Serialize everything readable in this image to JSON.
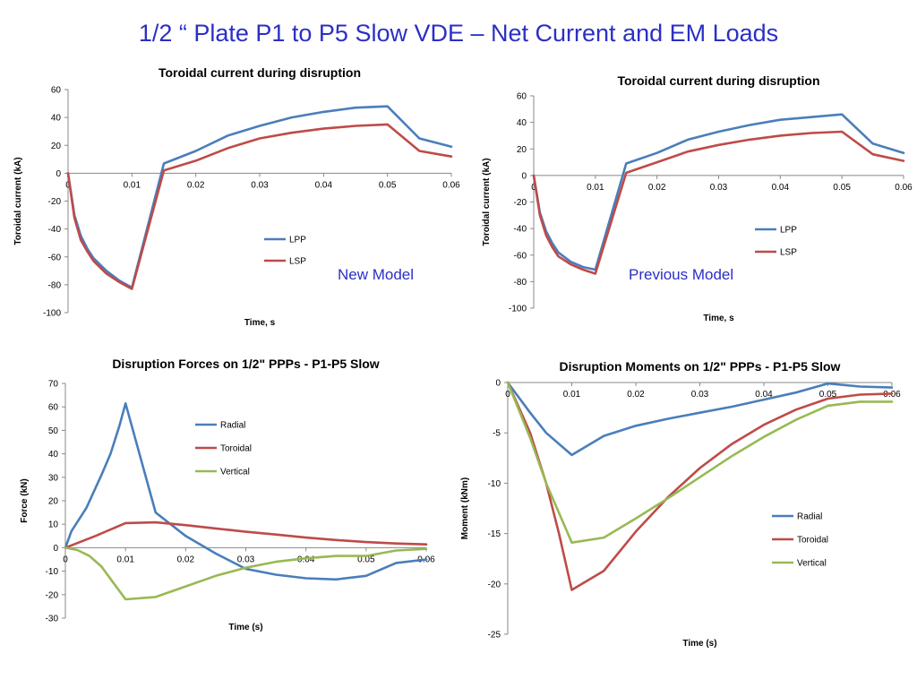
{
  "page": {
    "title": "1/2 “ Plate P1 to P5 Slow VDE – Net Current and EM Loads"
  },
  "notes": {
    "new_model": "New Model",
    "previous_model": "Previous Model"
  },
  "colors": {
    "blue": "#4a7ebb",
    "red": "#be4b48",
    "green": "#98b954",
    "title_blue": "#2b2fc4"
  },
  "chart_data": [
    {
      "id": "c1",
      "type": "line",
      "title": "Toroidal current during disruption",
      "xlabel": "Time, s",
      "ylabel": "Toroidal current (kA)",
      "xlim": [
        0,
        0.06
      ],
      "ylim": [
        -100,
        60
      ],
      "xticks": [
        0,
        0.01,
        0.02,
        0.03,
        0.04,
        0.05,
        0.06
      ],
      "xtick_labels": [
        "0",
        "0.01",
        "0.02",
        "0.03",
        "0.04",
        "0.05",
        "0.06"
      ],
      "yticks": [
        -100,
        -80,
        -60,
        -40,
        -20,
        0,
        20,
        40,
        60
      ],
      "ytick_labels": [
        "-100",
        "-80",
        "-60",
        "-40",
        "-20",
        "0",
        "20",
        "40",
        "60"
      ],
      "xtick_row": "zero",
      "grid": false,
      "legend": "center-right",
      "series": [
        {
          "name": "LPP",
          "color": "#4a7ebb",
          "x": [
            0,
            0.001,
            0.002,
            0.003,
            0.004,
            0.006,
            0.008,
            0.01,
            0.015,
            0.02,
            0.025,
            0.03,
            0.035,
            0.04,
            0.045,
            0.05,
            0.055,
            0.06
          ],
          "y": [
            0,
            -30,
            -45,
            -54,
            -61,
            -70,
            -77,
            -82,
            7,
            16,
            27,
            34,
            40,
            44,
            47,
            48,
            25,
            19
          ]
        },
        {
          "name": "LSP",
          "color": "#be4b48",
          "x": [
            0,
            0.001,
            0.002,
            0.003,
            0.004,
            0.006,
            0.008,
            0.01,
            0.015,
            0.02,
            0.025,
            0.03,
            0.035,
            0.04,
            0.045,
            0.05,
            0.055,
            0.06
          ],
          "y": [
            0,
            -32,
            -48,
            -56,
            -63,
            -72,
            -78,
            -83,
            2,
            9,
            18,
            25,
            29,
            32,
            34,
            35,
            16,
            12
          ]
        }
      ]
    },
    {
      "id": "c2",
      "type": "line",
      "title": "Toroidal current during disruption",
      "xlabel": "Time, s",
      "ylabel": "Toroidal current (kA)",
      "xlim": [
        0,
        0.06
      ],
      "ylim": [
        -100,
        60
      ],
      "xticks": [
        0,
        0.01,
        0.02,
        0.03,
        0.04,
        0.05,
        0.06
      ],
      "xtick_labels": [
        "0",
        "0.01",
        "0.02",
        "0.03",
        "0.04",
        "0.05",
        "0.06"
      ],
      "yticks": [
        -100,
        -80,
        -60,
        -40,
        -20,
        0,
        20,
        40,
        60
      ],
      "ytick_labels": [
        "-100",
        "-80",
        "-60",
        "-40",
        "-20",
        "0",
        "20",
        "40",
        "60"
      ],
      "xtick_row": "zero",
      "grid": false,
      "legend": "center-right",
      "series": [
        {
          "name": "LPP",
          "color": "#4a7ebb",
          "x": [
            0,
            0.001,
            0.002,
            0.003,
            0.004,
            0.006,
            0.008,
            0.01,
            0.015,
            0.02,
            0.025,
            0.03,
            0.035,
            0.04,
            0.045,
            0.05,
            0.055,
            0.06
          ],
          "y": [
            0,
            -28,
            -42,
            -51,
            -58,
            -65,
            -69,
            -71,
            9,
            17,
            27,
            33,
            38,
            42,
            44,
            46,
            24,
            17
          ]
        },
        {
          "name": "LSP",
          "color": "#be4b48",
          "x": [
            0,
            0.001,
            0.002,
            0.003,
            0.004,
            0.006,
            0.008,
            0.01,
            0.015,
            0.02,
            0.025,
            0.03,
            0.035,
            0.04,
            0.045,
            0.05,
            0.055,
            0.06
          ],
          "y": [
            0,
            -30,
            -45,
            -54,
            -61,
            -67,
            -71,
            -74,
            2,
            10,
            18,
            23,
            27,
            30,
            32,
            33,
            16,
            11
          ]
        }
      ]
    },
    {
      "id": "c3",
      "type": "line",
      "title": "Disruption Forces on 1/2\" PPPs - P1-P5 Slow",
      "xlabel": "Time (s)",
      "ylabel": "Force (kN)",
      "xlim": [
        0,
        0.06
      ],
      "ylim": [
        -30,
        70
      ],
      "xticks": [
        0,
        0.01,
        0.02,
        0.03,
        0.04,
        0.05,
        0.06
      ],
      "xtick_labels": [
        "0",
        "0.01",
        "0.02",
        "0.03",
        "0.04",
        "0.05",
        "0.06"
      ],
      "yticks": [
        -30,
        -20,
        -10,
        0,
        10,
        20,
        30,
        40,
        50,
        60,
        70
      ],
      "ytick_labels": [
        "-30",
        "-20",
        "-10",
        "0",
        "10",
        "20",
        "30",
        "40",
        "50",
        "60",
        "70"
      ],
      "xtick_row": "zero",
      "grid": false,
      "legend": "top-center",
      "series": [
        {
          "name": "Radial",
          "color": "#4a7ebb",
          "x": [
            0,
            0.001,
            0.0035,
            0.006,
            0.0075,
            0.009,
            0.01,
            0.015,
            0.02,
            0.025,
            0.03,
            0.035,
            0.04,
            0.045,
            0.05,
            0.055,
            0.06
          ],
          "y": [
            0,
            7,
            17,
            31,
            40,
            52,
            61.5,
            15,
            5,
            -2.5,
            -9,
            -11.5,
            -13,
            -13.5,
            -12,
            -6.5,
            -5
          ]
        },
        {
          "name": "Toroidal",
          "color": "#be4b48",
          "x": [
            0,
            0.005,
            0.01,
            0.015,
            0.02,
            0.025,
            0.03,
            0.035,
            0.04,
            0.045,
            0.05,
            0.055,
            0.06
          ],
          "y": [
            0,
            5,
            10.5,
            10.8,
            9.6,
            8.2,
            6.8,
            5.6,
            4.3,
            3.3,
            2.4,
            1.8,
            1.4
          ]
        },
        {
          "name": "Vertical",
          "color": "#98b954",
          "x": [
            0,
            0.002,
            0.004,
            0.006,
            0.008,
            0.01,
            0.015,
            0.02,
            0.025,
            0.03,
            0.035,
            0.04,
            0.045,
            0.05,
            0.055,
            0.06
          ],
          "y": [
            0,
            -1,
            -3.5,
            -8,
            -15,
            -22,
            -21,
            -16.5,
            -12,
            -8.5,
            -6,
            -4.5,
            -3.5,
            -3.5,
            -1.2,
            -0.5
          ]
        }
      ]
    },
    {
      "id": "c4",
      "type": "line",
      "title": "Disruption Moments on 1/2\" PPPs - P1-P5 Slow",
      "xlabel": "Time (s)",
      "ylabel": "Moment (kNm)",
      "xlim": [
        0,
        0.06
      ],
      "ylim": [
        -25,
        0
      ],
      "xticks": [
        0,
        0.01,
        0.02,
        0.03,
        0.04,
        0.05,
        0.06
      ],
      "xtick_labels": [
        "0",
        "0.01",
        "0.02",
        "0.03",
        "0.04",
        "0.05",
        "0.06"
      ],
      "yticks": [
        -25,
        -20,
        -15,
        -10,
        -5,
        0
      ],
      "ytick_labels": [
        "-25",
        "-20",
        "-15",
        "-10",
        "-5",
        "0"
      ],
      "xtick_row": "top",
      "grid": false,
      "legend": "center-right",
      "series": [
        {
          "name": "Radial",
          "color": "#4a7ebb",
          "x": [
            0,
            0.0035,
            0.006,
            0.01,
            0.015,
            0.02,
            0.025,
            0.03,
            0.035,
            0.04,
            0.045,
            0.05,
            0.055,
            0.06
          ],
          "y": [
            0,
            -3,
            -5,
            -7.2,
            -5.3,
            -4.3,
            -3.6,
            -3,
            -2.4,
            -1.7,
            -1,
            -0.1,
            -0.4,
            -0.5
          ]
        },
        {
          "name": "Toroidal",
          "color": "#be4b48",
          "x": [
            0,
            0.0035,
            0.006,
            0.008,
            0.01,
            0.015,
            0.02,
            0.025,
            0.03,
            0.035,
            0.04,
            0.045,
            0.05,
            0.055,
            0.06
          ],
          "y": [
            0,
            -5,
            -10,
            -15,
            -20.6,
            -18.7,
            -14.8,
            -11.4,
            -8.5,
            -6.1,
            -4.2,
            -2.7,
            -1.6,
            -1.2,
            -1.1
          ]
        },
        {
          "name": "Vertical",
          "color": "#98b954",
          "x": [
            0,
            0.0035,
            0.006,
            0.01,
            0.015,
            0.02,
            0.025,
            0.03,
            0.035,
            0.04,
            0.045,
            0.05,
            0.055,
            0.06
          ],
          "y": [
            0,
            -5.5,
            -10,
            -15.9,
            -15.4,
            -13.5,
            -11.5,
            -9.4,
            -7.3,
            -5.4,
            -3.7,
            -2.3,
            -1.9,
            -1.9
          ]
        }
      ]
    }
  ]
}
